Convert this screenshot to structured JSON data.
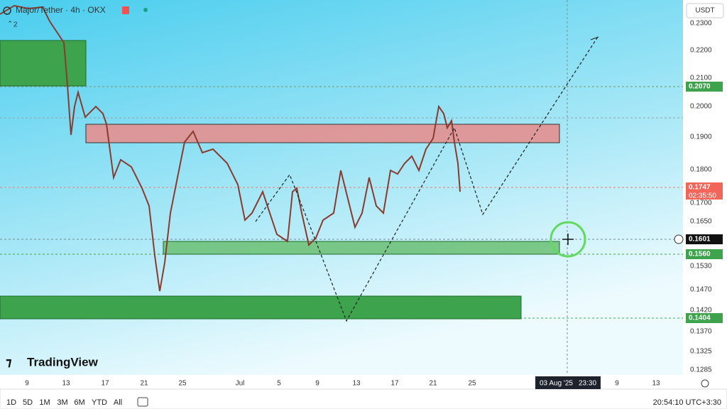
{
  "header": {
    "symbol": "Major/Tether · 4h · OKX",
    "indicator_count": "2",
    "currency": "USDT"
  },
  "logo": "TradingView",
  "price_axis": {
    "labels": [
      "0.2300",
      "0.2200",
      "0.2100",
      "0.2000",
      "0.1900",
      "0.1800",
      "0.1700",
      "0.1650",
      "0.1530",
      "0.1470",
      "0.1420",
      "0.1370",
      "0.1325",
      "0.1285"
    ],
    "badges": [
      "0.2070",
      "0.1747",
      "0.1601",
      "0.1560",
      "0.1404"
    ],
    "countdown": "02:35:50"
  },
  "time_axis": {
    "labels": [
      "9",
      "13",
      "17",
      "21",
      "25",
      "Jul",
      "5",
      "9",
      "13",
      "17",
      "21",
      "25",
      "9",
      "13"
    ],
    "crosshair_date": "03 Aug '25",
    "crosshair_time": "23:30"
  },
  "bottom_bar": {
    "timeframes": [
      "1D",
      "5D",
      "1M",
      "3M",
      "6M",
      "YTD",
      "All"
    ],
    "clock": "20:54:10 UTC+3:30"
  }
}
